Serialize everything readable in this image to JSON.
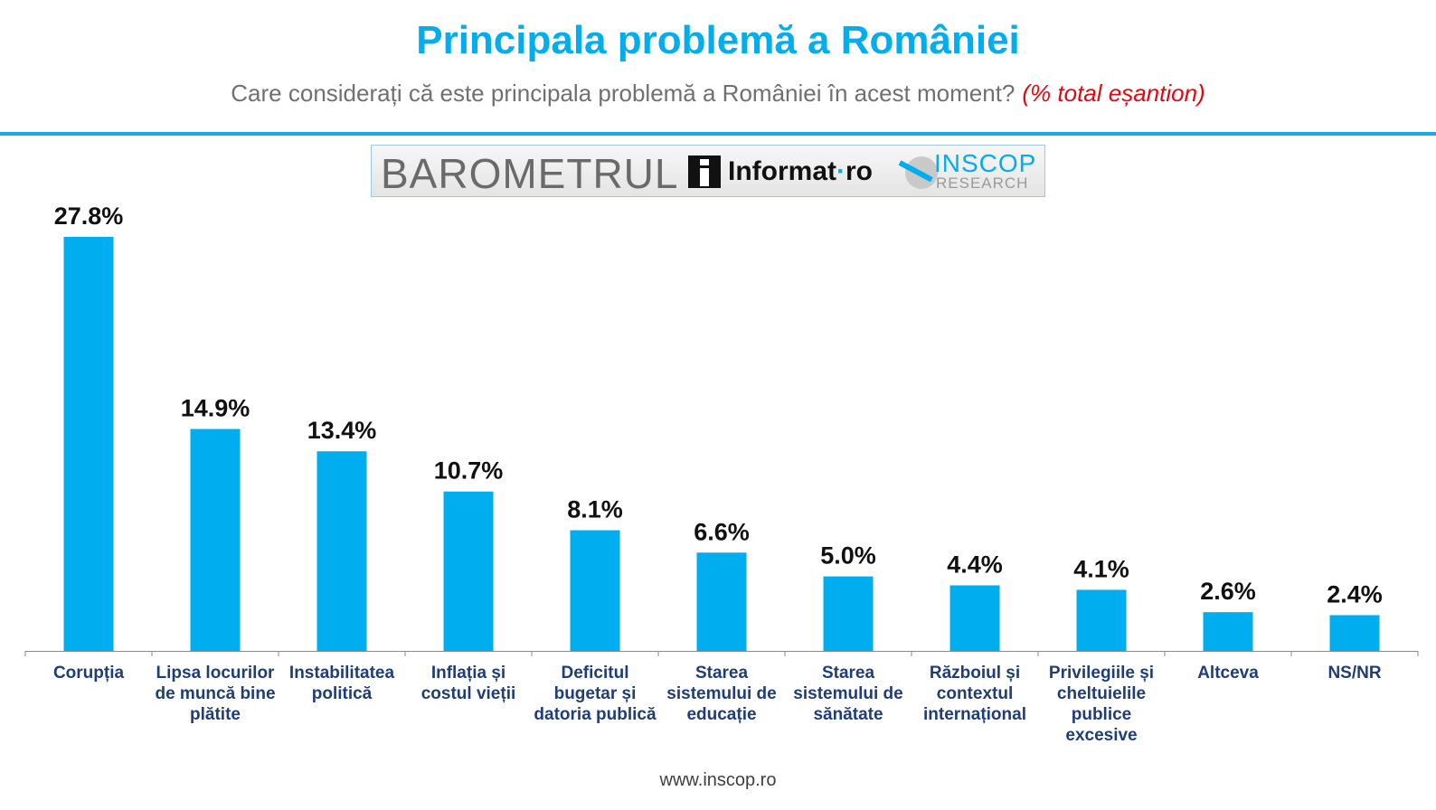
{
  "header": {
    "title": "Principala problemă a României",
    "subtitle": "Care considerați că este principala problemă a României în acest moment?",
    "subtitle_note": "(% total eșantion)"
  },
  "banner": {
    "barometer": "BAROMETRUL",
    "partner": "Informat",
    "partner_dot": "·",
    "partner_tld": "ro",
    "brand": "INSCOP",
    "brand_sub": "RESEARCH"
  },
  "chart_data": {
    "type": "bar",
    "categories": [
      "Corupția",
      "Lipsa locurilor de muncă bine plătite",
      "Instabilitatea politică",
      "Inflația și costul vieții",
      "Deficitul bugetar și datoria publică",
      "Starea sistemului de educație",
      "Starea sistemului de sănătate",
      "Războiul și contextul internațional",
      "Privilegiile și cheltuielile publice excesive",
      "Altceva",
      "NS/NR"
    ],
    "values": [
      27.8,
      14.9,
      13.4,
      10.7,
      8.1,
      6.6,
      5.0,
      4.4,
      4.1,
      2.6,
      2.4
    ],
    "value_labels": [
      "27.8%",
      "14.9%",
      "13.4%",
      "10.7%",
      "8.1%",
      "6.6%",
      "5.0%",
      "4.4%",
      "4.1%",
      "2.6%",
      "2.4%"
    ],
    "unit": "%",
    "ylim": [
      0,
      27.8
    ],
    "grid": false,
    "legend": "none",
    "bar_color": "#00AEEF"
  },
  "colors": {
    "accent": "#00AEEF",
    "note": "#E30613",
    "category_text": "#1F3E75"
  },
  "footer": {
    "url": "www.inscop.ro"
  }
}
